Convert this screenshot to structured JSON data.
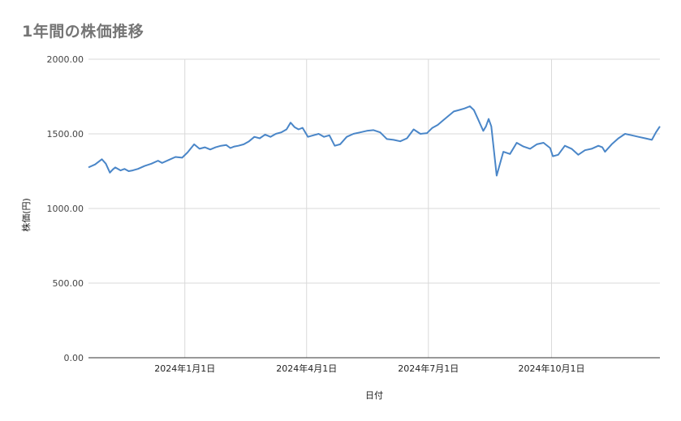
{
  "chart_data": {
    "type": "line",
    "title": "1年間の株価推移",
    "xlabel": "日付",
    "ylabel": "株価(円)",
    "ylim": [
      0,
      2000
    ],
    "y_ticks": [
      "0.00",
      "500.00",
      "1000.00",
      "1500.00",
      "2000.00"
    ],
    "y_tick_values": [
      0,
      500,
      1000,
      1500,
      2000
    ],
    "x_range": [
      "2023-10-21",
      "2024-12-21"
    ],
    "x_ticks": [
      {
        "label": "2024年1月1日",
        "date": "2024-01-01"
      },
      {
        "label": "2024年4月1日",
        "date": "2024-04-01"
      },
      {
        "label": "2024年7月1日",
        "date": "2024-07-01"
      },
      {
        "label": "2024年10月1日",
        "date": "2024-10-01"
      }
    ],
    "grid": true,
    "line_color": "#4a86c8",
    "series": [
      {
        "x": [
          "2023-10-21",
          "2023-10-26",
          "2023-10-31",
          "2023-11-03",
          "2023-11-06",
          "2023-11-08",
          "2023-11-10",
          "2023-11-14",
          "2023-11-17",
          "2023-11-20",
          "2023-11-23",
          "2023-11-27",
          "2023-12-02",
          "2023-12-07",
          "2023-12-12",
          "2023-12-15",
          "2023-12-20",
          "2023-12-25",
          "2023-12-30",
          "2024-01-03",
          "2024-01-08",
          "2024-01-12",
          "2024-01-16",
          "2024-01-20",
          "2024-01-24",
          "2024-01-28",
          "2024-02-01",
          "2024-02-04",
          "2024-02-07",
          "2024-02-10",
          "2024-02-14",
          "2024-02-18",
          "2024-02-22",
          "2024-02-26",
          "2024-03-01",
          "2024-03-05",
          "2024-03-09",
          "2024-03-13",
          "2024-03-17",
          "2024-03-20",
          "2024-03-23",
          "2024-03-26",
          "2024-03-29",
          "2024-04-02",
          "2024-04-06",
          "2024-04-10",
          "2024-04-14",
          "2024-04-18",
          "2024-04-22",
          "2024-04-26",
          "2024-05-01",
          "2024-05-06",
          "2024-05-11",
          "2024-05-16",
          "2024-05-21",
          "2024-05-26",
          "2024-05-31",
          "2024-06-05",
          "2024-06-10",
          "2024-06-15",
          "2024-06-20",
          "2024-06-25",
          "2024-06-30",
          "2024-07-04",
          "2024-07-08",
          "2024-07-12",
          "2024-07-16",
          "2024-07-20",
          "2024-07-24",
          "2024-07-28",
          "2024-08-01",
          "2024-08-04",
          "2024-08-07",
          "2024-08-09",
          "2024-08-11",
          "2024-08-13",
          "2024-08-15",
          "2024-08-17",
          "2024-08-21",
          "2024-08-26",
          "2024-08-31",
          "2024-09-05",
          "2024-09-10",
          "2024-09-15",
          "2024-09-20",
          "2024-09-25",
          "2024-09-30",
          "2024-10-02",
          "2024-10-06",
          "2024-10-11",
          "2024-10-16",
          "2024-10-21",
          "2024-10-26",
          "2024-10-31",
          "2024-11-05",
          "2024-11-08",
          "2024-11-10",
          "2024-11-15",
          "2024-11-20",
          "2024-11-25",
          "2024-11-30",
          "2024-12-05",
          "2024-12-10",
          "2024-12-15",
          "2024-12-18",
          "2024-12-21"
        ],
        "values": [
          1275,
          1295,
          1330,
          1300,
          1240,
          1260,
          1275,
          1255,
          1265,
          1250,
          1255,
          1265,
          1285,
          1300,
          1320,
          1305,
          1325,
          1345,
          1340,
          1375,
          1430,
          1400,
          1410,
          1395,
          1410,
          1420,
          1425,
          1405,
          1415,
          1420,
          1430,
          1450,
          1480,
          1470,
          1495,
          1480,
          1500,
          1510,
          1530,
          1575,
          1545,
          1530,
          1540,
          1480,
          1490,
          1500,
          1480,
          1490,
          1420,
          1430,
          1480,
          1500,
          1510,
          1520,
          1525,
          1510,
          1465,
          1460,
          1450,
          1470,
          1530,
          1500,
          1505,
          1540,
          1560,
          1590,
          1620,
          1650,
          1660,
          1670,
          1685,
          1660,
          1600,
          1560,
          1520,
          1550,
          1600,
          1550,
          1220,
          1380,
          1365,
          1440,
          1415,
          1400,
          1430,
          1440,
          1405,
          1350,
          1360,
          1420,
          1400,
          1360,
          1390,
          1400,
          1420,
          1410,
          1380,
          1430,
          1470,
          1500,
          1490,
          1480,
          1470,
          1460,
          1510,
          1550
        ]
      }
    ]
  }
}
